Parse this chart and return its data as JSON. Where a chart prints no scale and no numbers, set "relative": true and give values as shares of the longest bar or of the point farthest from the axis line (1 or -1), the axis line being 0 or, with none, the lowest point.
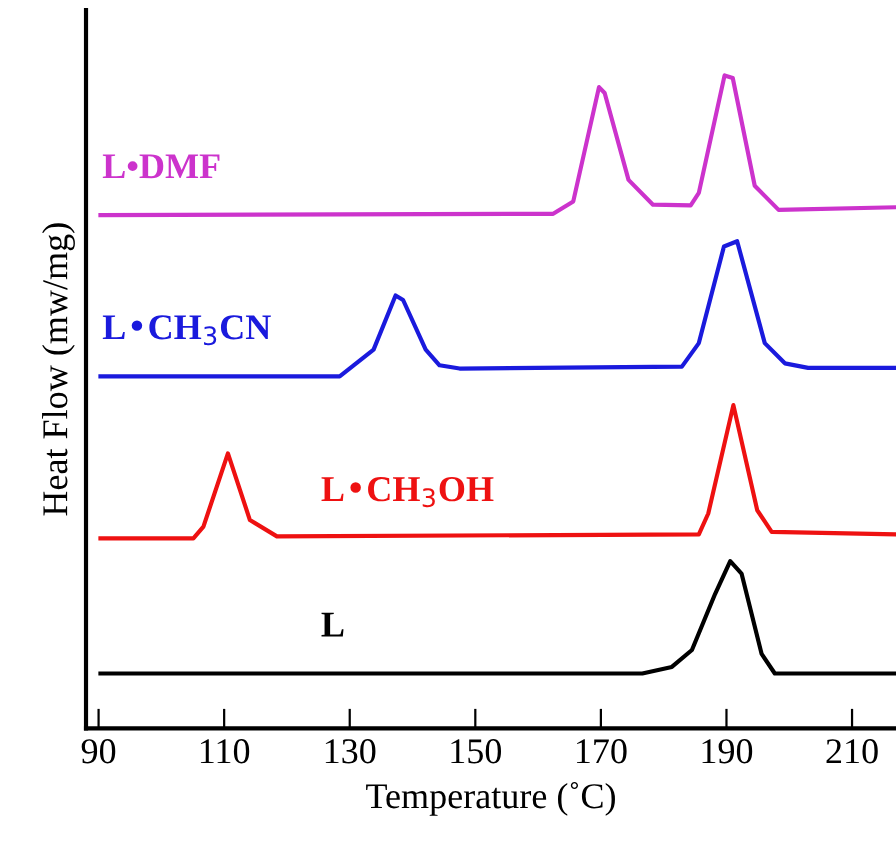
{
  "chart_data": {
    "type": "line",
    "relative": true,
    "xlabel": "Temperature (˚C)",
    "ylabel": "Heat Flow (mw/mg)",
    "xlim": [
      88,
      217
    ],
    "xticks": [
      90,
      110,
      130,
      150,
      170,
      190,
      210
    ],
    "tick_labels": "x",
    "grid": false,
    "legend": false,
    "marker": "none",
    "line_style": "solid",
    "series": [
      {
        "name": "L•DMF",
        "color": "#cc33cc",
        "x": [
          90.3,
          162.4,
          165.6,
          169.7,
          170.6,
          174.4,
          178.3,
          184.3,
          185.6,
          189.7,
          191.0,
          194.5,
          198.3,
          216.7
        ],
        "values": [
          0.786,
          0.788,
          0.807,
          0.982,
          0.973,
          0.84,
          0.802,
          0.801,
          0.82,
          1.0,
          0.996,
          0.831,
          0.794,
          0.798
        ]
      },
      {
        "name": "L•CH$_{3}$CN",
        "color": "#1a1add",
        "x": [
          90.3,
          128.4,
          133.8,
          137.3,
          138.5,
          142.1,
          144.3,
          147.5,
          182.9,
          185.6,
          189.6,
          191.7,
          196.1,
          199.3,
          203.0,
          216.7
        ],
        "values": [
          0.539,
          0.539,
          0.58,
          0.663,
          0.656,
          0.58,
          0.556,
          0.551,
          0.554,
          0.59,
          0.738,
          0.746,
          0.59,
          0.559,
          0.552,
          0.552
        ]
      },
      {
        "name": "L•CH$_{3}$OH",
        "color": "#ee1111",
        "x": [
          90.3,
          105.1,
          106.7,
          110.6,
          114.1,
          118.4,
          185.6,
          187.1,
          191.1,
          194.9,
          197.2,
          216.7
        ],
        "values": [
          0.291,
          0.291,
          0.309,
          0.421,
          0.319,
          0.294,
          0.297,
          0.329,
          0.495,
          0.334,
          0.301,
          0.297
        ]
      },
      {
        "name": "L",
        "color": "#000000",
        "x": [
          90.3,
          176.6,
          181.3,
          184.5,
          188.2,
          190.6,
          192.4,
          195.6,
          197.7,
          216.7
        ],
        "values": [
          0.084,
          0.084,
          0.094,
          0.12,
          0.206,
          0.256,
          0.237,
          0.114,
          0.084,
          0.084
        ]
      }
    ]
  }
}
